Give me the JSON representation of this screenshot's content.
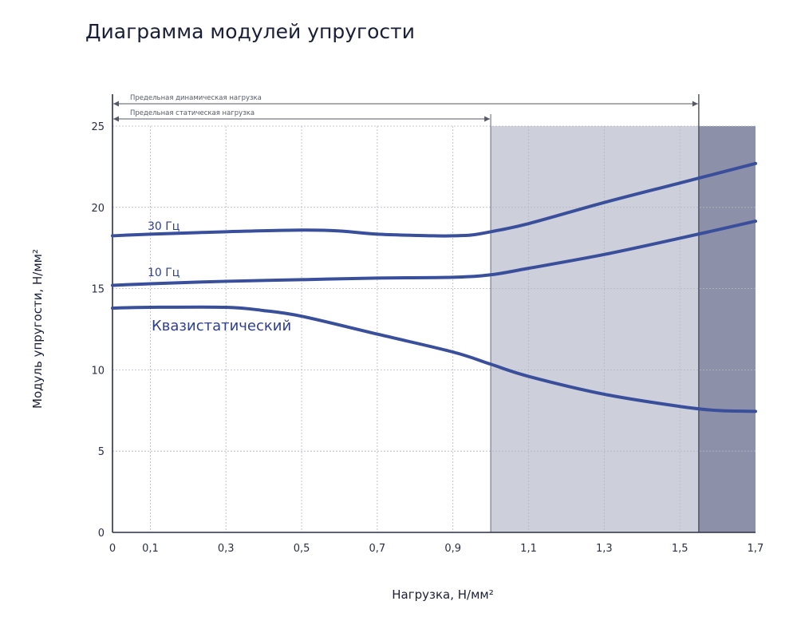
{
  "chart_data": {
    "type": "line",
    "title": "Диаграмма модулей упругости",
    "xlabel": "Нагрузка, Н/мм²",
    "ylabel": "Модуль упругости, Н/мм²",
    "xlim": [
      0,
      1.7
    ],
    "ylim": [
      0,
      25
    ],
    "x_ticks": [
      "0",
      "0,1",
      "0,3",
      "0,5",
      "0,7",
      "0,9",
      "1,1",
      "1,3",
      "1,5",
      "1,7"
    ],
    "y_ticks": [
      "0",
      "5",
      "10",
      "15",
      "20",
      "25"
    ],
    "grid": true,
    "series": [
      {
        "name": "30 Гц",
        "x": [
          0,
          0.1,
          0.3,
          0.5,
          0.6,
          0.7,
          0.85,
          0.9,
          0.95,
          1.0,
          1.1,
          1.3,
          1.5,
          1.7
        ],
        "values": [
          18.25,
          18.35,
          18.5,
          18.6,
          18.55,
          18.35,
          18.25,
          18.25,
          18.3,
          18.5,
          19.0,
          20.3,
          21.5,
          22.7
        ]
      },
      {
        "name": "10 Гц",
        "x": [
          0,
          0.1,
          0.3,
          0.5,
          0.7,
          0.9,
          1.0,
          1.1,
          1.3,
          1.5,
          1.7
        ],
        "values": [
          15.2,
          15.3,
          15.45,
          15.55,
          15.65,
          15.7,
          15.85,
          16.25,
          17.1,
          18.1,
          19.15
        ]
      },
      {
        "name": "Квазистатический",
        "x": [
          0,
          0.1,
          0.3,
          0.4,
          0.5,
          0.7,
          0.9,
          1.0,
          1.1,
          1.3,
          1.5,
          1.6,
          1.7
        ],
        "values": [
          13.8,
          13.85,
          13.85,
          13.65,
          13.3,
          12.2,
          11.1,
          10.35,
          9.6,
          8.5,
          7.75,
          7.5,
          7.45
        ]
      }
    ],
    "ranges": [
      {
        "label": "Предельная динамическая нагрузка",
        "x_end": 1.55,
        "color": "#8c90a8"
      },
      {
        "label": "Предельная статическая нагрузка",
        "x_end": 1.0,
        "color": "#cdd0da"
      }
    ],
    "line_color": "#3a4f9b"
  }
}
